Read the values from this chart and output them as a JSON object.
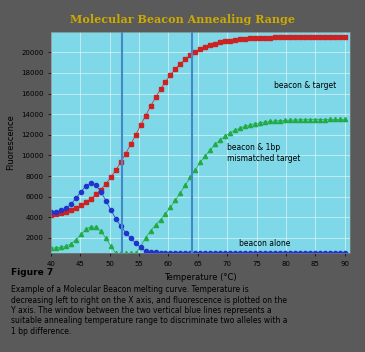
{
  "title": "Molecular Beacon Annealing Range",
  "title_color": "#ccaa00",
  "bg_color": "#5a5a5a",
  "plot_bg_color": "#7fd8e8",
  "xlabel": "Temperature (°C)",
  "ylabel": "Fluorescence",
  "ylabel_fontsize": 6,
  "xlabel_fontsize": 6,
  "title_fontsize": 8,
  "xlim": [
    40,
    91
  ],
  "ylim": [
    500,
    22000
  ],
  "yticks": [
    2000,
    4000,
    6000,
    8000,
    10000,
    12000,
    14000,
    16000,
    18000,
    20000
  ],
  "xticks": [
    40,
    45,
    50,
    55,
    60,
    65,
    70,
    75,
    80,
    85,
    90
  ],
  "vline1_x": 52,
  "vline2_x": 64,
  "vline_color": "#4488cc",
  "label_beacon_target": "beacon & target",
  "label_beacon_mismatch": "beacon & 1bp\nmismatched target",
  "label_beacon_alone": "beacon alone",
  "line1_color": "#cc2222",
  "line2_color": "#22aa44",
  "line3_color": "#2233cc",
  "marker1": "s",
  "marker2": "^",
  "marker3": "o"
}
